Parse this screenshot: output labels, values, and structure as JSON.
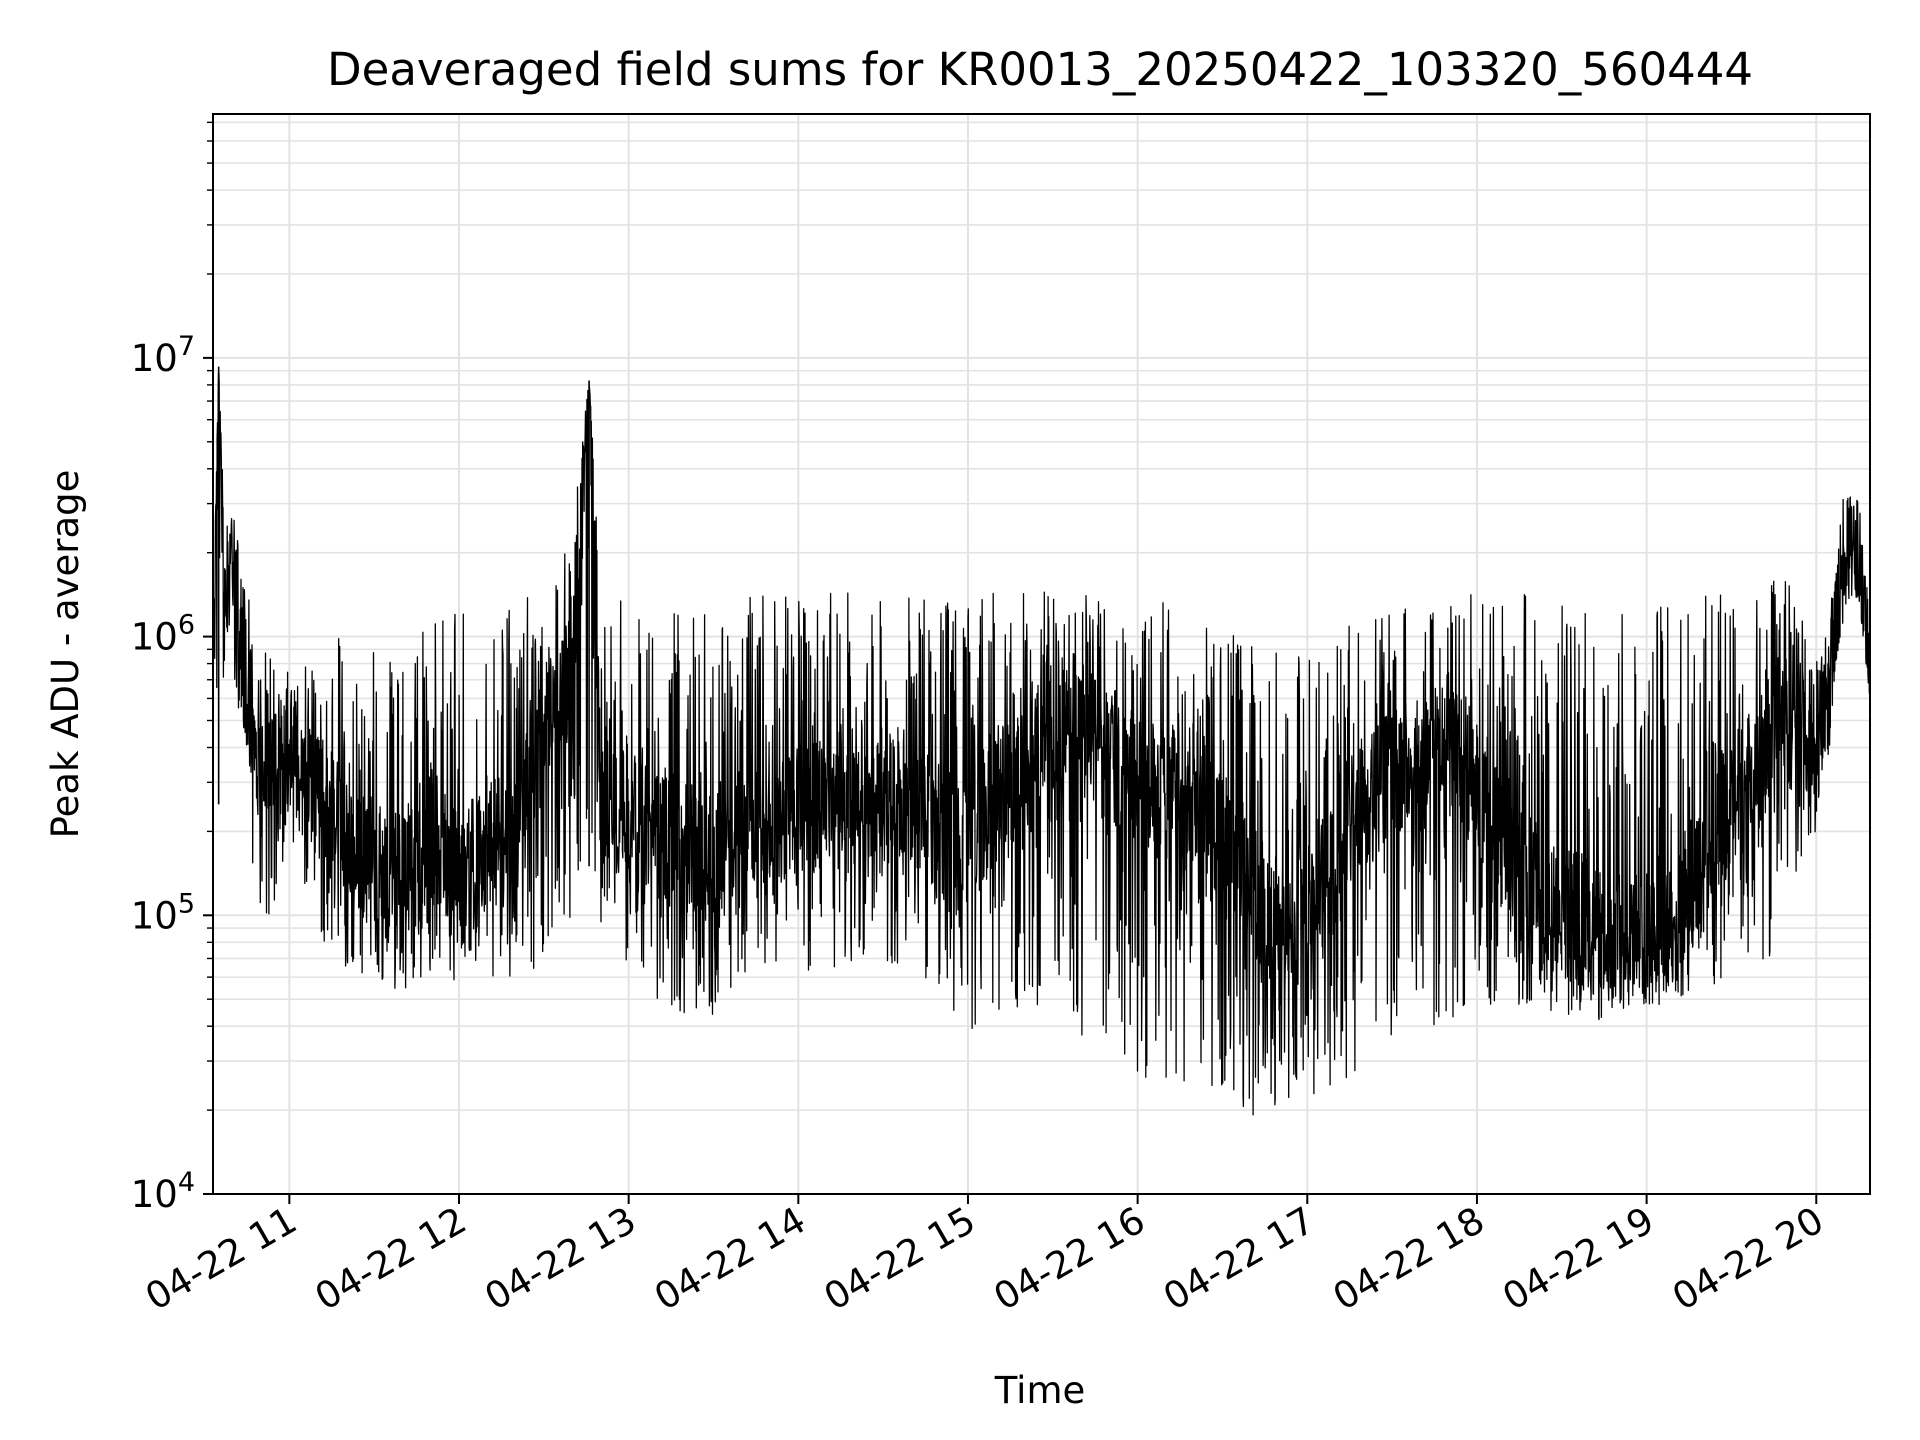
{
  "chart_data": {
    "type": "line",
    "title": "Deaveraged field sums for KR0013_20250422_103320_560444",
    "xlabel": "Time",
    "ylabel": "Peak ADU - average",
    "yscale": "log",
    "ylim": [
      10000,
      75000000
    ],
    "xlim": [
      "2025-04-22 10:33",
      "2025-04-22 20:19"
    ],
    "grid": true,
    "legend": "none",
    "line_color": "#000000",
    "x_tick_labels": [
      "04-22 11",
      "04-22 12",
      "04-22 13",
      "04-22 14",
      "04-22 15",
      "04-22 16",
      "04-22 17",
      "04-22 18",
      "04-22 19",
      "04-22 20"
    ],
    "y_tick_labels": [
      {
        "value": 10000,
        "base": "10",
        "exp": "4"
      },
      {
        "value": 100000,
        "base": "10",
        "exp": "5"
      },
      {
        "value": 1000000,
        "base": "10",
        "exp": "6"
      },
      {
        "value": 10000000,
        "base": "10",
        "exp": "7"
      }
    ],
    "series": [
      {
        "x": [
          "2025-04-22 10:33",
          "2025-04-22 10:35",
          "2025-04-22 10:37",
          "2025-04-22 10:40",
          "2025-04-22 10:45",
          "2025-04-22 10:50",
          "2025-04-22 10:55",
          "2025-04-22 11:00",
          "2025-04-22 11:10",
          "2025-04-22 11:20",
          "2025-04-22 11:30",
          "2025-04-22 11:40",
          "2025-04-22 11:50",
          "2025-04-22 12:00",
          "2025-04-22 12:10",
          "2025-04-22 12:20",
          "2025-04-22 12:30",
          "2025-04-22 12:40",
          "2025-04-22 12:46",
          "2025-04-22 12:50",
          "2025-04-22 13:00",
          "2025-04-22 13:10",
          "2025-04-22 13:20",
          "2025-04-22 13:30",
          "2025-04-22 13:40",
          "2025-04-22 13:50",
          "2025-04-22 14:00",
          "2025-04-22 14:10",
          "2025-04-22 14:20",
          "2025-04-22 14:30",
          "2025-04-22 14:40",
          "2025-04-22 14:50",
          "2025-04-22 15:00",
          "2025-04-22 15:10",
          "2025-04-22 15:20",
          "2025-04-22 15:30",
          "2025-04-22 15:40",
          "2025-04-22 15:50",
          "2025-04-22 16:00",
          "2025-04-22 16:10",
          "2025-04-22 16:20",
          "2025-04-22 16:30",
          "2025-04-22 16:40",
          "2025-04-22 16:50",
          "2025-04-22 17:00",
          "2025-04-22 17:10",
          "2025-04-22 17:20",
          "2025-04-22 17:30",
          "2025-04-22 17:40",
          "2025-04-22 17:50",
          "2025-04-22 18:00",
          "2025-04-22 18:10",
          "2025-04-22 18:20",
          "2025-04-22 18:30",
          "2025-04-22 18:40",
          "2025-04-22 18:50",
          "2025-04-22 19:00",
          "2025-04-22 19:10",
          "2025-04-22 19:20",
          "2025-04-22 19:30",
          "2025-04-22 19:40",
          "2025-04-22 19:50",
          "2025-04-22 20:00",
          "2025-04-22 20:05",
          "2025-04-22 20:10",
          "2025-04-22 20:15",
          "2025-04-22 20:19"
        ],
        "y": [
          1000000,
          9300000,
          1500000,
          1800000,
          600000,
          400000,
          300000,
          400000,
          280000,
          200000,
          150000,
          130000,
          200000,
          130000,
          180000,
          170000,
          500000,
          700000,
          8300000,
          280000,
          220000,
          200000,
          180000,
          160000,
          200000,
          240000,
          250000,
          240000,
          240000,
          250000,
          240000,
          200000,
          190000,
          260000,
          320000,
          450000,
          420000,
          380000,
          300000,
          260000,
          280000,
          200000,
          130000,
          90000,
          120000,
          150000,
          250000,
          350000,
          330000,
          380000,
          300000,
          200000,
          120000,
          100000,
          90000,
          80000,
          80000,
          100000,
          150000,
          250000,
          350000,
          500000,
          420000,
          800000,
          1800000,
          2200000,
          600000
        ],
        "low": [
          1000000,
          250000,
          400000,
          600000,
          150000,
          100000,
          75000,
          200000,
          80000,
          60000,
          55000,
          50000,
          60000,
          55000,
          55000,
          50000,
          60000,
          80000,
          150000,
          90000,
          60000,
          45000,
          40000,
          40000,
          55000,
          60000,
          60000,
          55000,
          55000,
          60000,
          55000,
          45000,
          30000,
          40000,
          40000,
          45000,
          30000,
          25000,
          22000,
          22000,
          21000,
          18000,
          17000,
          18000,
          20000,
          22000,
          25000,
          30000,
          35000,
          35000,
          40000,
          45000,
          45000,
          42000,
          40000,
          42000,
          45000,
          48000,
          50000,
          55000,
          60000,
          65000,
          200000,
          400000,
          1300000,
          1400000,
          600000
        ],
        "high": [
          1000000,
          9300000,
          2500000,
          3000000,
          1500000,
          1000000,
          900000,
          1000000,
          900000,
          1200000,
          1100000,
          1300000,
          1300000,
          1400000,
          1300000,
          1500000,
          2000000,
          2500000,
          8300000,
          1800000,
          1500000,
          1400000,
          1400000,
          1400000,
          1500000,
          1600000,
          1600000,
          1600000,
          1600000,
          1600000,
          1500000,
          1500000,
          1400000,
          1600000,
          1700000,
          1700000,
          1600000,
          1500000,
          1450000,
          1450000,
          1300000,
          1200000,
          1100000,
          1100000,
          1100000,
          1200000,
          1300000,
          1400000,
          1500000,
          1550000,
          1600000,
          1650000,
          1600000,
          1550000,
          1500000,
          1450000,
          1500000,
          1550000,
          1600000,
          1650000,
          1700000,
          1700000,
          900000,
          1500000,
          3700000,
          3000000,
          1500000
        ]
      }
    ]
  }
}
